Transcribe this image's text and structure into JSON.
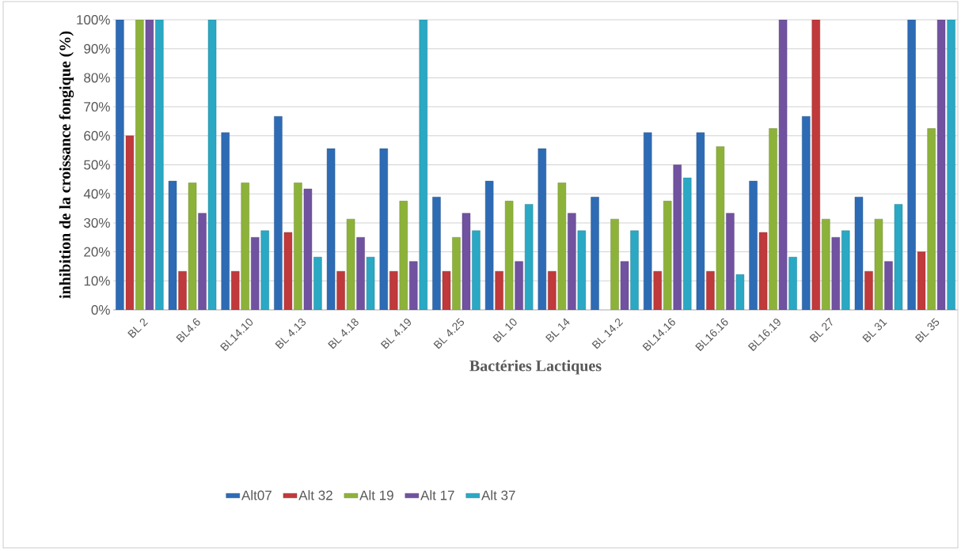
{
  "chart_data": {
    "type": "bar",
    "xlabel": "Bactéries Lactiques",
    "ylabel": "inhibition de la croissance fongique (%)",
    "categories": [
      "BL 2",
      "BL4.6",
      "BL14.10",
      "BL 4.13",
      "BL 4.18",
      "BL 4.19",
      "BL 4.25",
      "BL 10",
      "BL 14",
      "BL 14.2",
      "BL14.16",
      "BL16.16",
      "BL16.19",
      "BL 27",
      "BL 31",
      "BL 35"
    ],
    "series": [
      {
        "name": "Alt07",
        "color": "#2e6bb5",
        "values": [
          100,
          44.4,
          61.1,
          66.7,
          55.6,
          55.6,
          38.9,
          44.4,
          55.6,
          38.9,
          61.1,
          61.1,
          44.4,
          66.7,
          38.9,
          100
        ]
      },
      {
        "name": "Alt 32",
        "color": "#c0393b",
        "values": [
          60,
          13.3,
          13.3,
          26.7,
          13.3,
          13.3,
          13.3,
          13.3,
          13.3,
          null,
          13.3,
          13.3,
          26.7,
          100,
          13.3,
          20
        ]
      },
      {
        "name": "Alt 19",
        "color": "#8db23a",
        "values": [
          100,
          43.8,
          43.8,
          43.8,
          31.3,
          37.5,
          25,
          37.5,
          43.8,
          31.3,
          37.5,
          56.3,
          62.5,
          31.3,
          31.3,
          62.5
        ]
      },
      {
        "name": "Alt 17",
        "color": "#7052a0",
        "values": [
          100,
          33.3,
          25,
          41.7,
          25,
          16.7,
          33.3,
          16.7,
          33.3,
          16.7,
          50,
          33.3,
          100,
          25,
          16.7,
          100
        ]
      },
      {
        "name": "Alt 37",
        "color": "#2aa8c4",
        "values": [
          100,
          100,
          27.3,
          18.2,
          18.2,
          100,
          27.3,
          36.4,
          27.3,
          27.3,
          45.5,
          12.2,
          18.2,
          27.3,
          36.4,
          100
        ]
      }
    ],
    "ylim": [
      0,
      100
    ],
    "yticks": [
      {
        "value": 0,
        "label": "0%"
      },
      {
        "value": 10,
        "label": "10%"
      },
      {
        "value": 20,
        "label": "20%"
      },
      {
        "value": 30,
        "label": "30%"
      },
      {
        "value": 40,
        "label": "40%"
      },
      {
        "value": 50,
        "label": "50%"
      },
      {
        "value": 60,
        "label": "60%"
      },
      {
        "value": 70,
        "label": "70%"
      },
      {
        "value": 80,
        "label": "80%"
      },
      {
        "value": 90,
        "label": "90%"
      },
      {
        "value": 100,
        "label": "100%"
      }
    ],
    "grid": "y",
    "legend": "bottom"
  }
}
